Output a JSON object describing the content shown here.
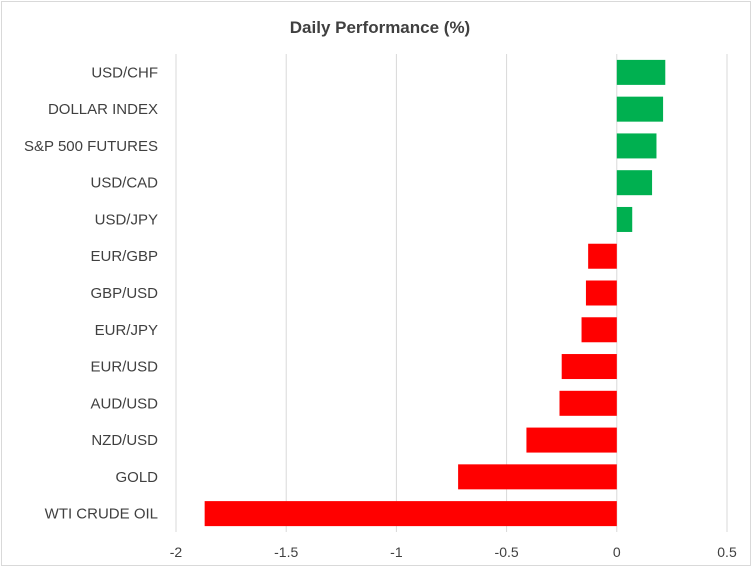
{
  "chart_data": {
    "type": "bar",
    "orientation": "horizontal",
    "title": "Daily Performance (%)",
    "xlabel": "",
    "ylabel": "",
    "xlim": [
      -2,
      0.5
    ],
    "x_ticks": [
      -2,
      -1.5,
      -1,
      -0.5,
      0,
      0.5
    ],
    "x_tick_labels": [
      "-2",
      "-1.5",
      "-1",
      "-0.5",
      "0",
      "0.5"
    ],
    "grid": true,
    "legend": "none",
    "positive_color": "#00b050",
    "negative_color": "#ff0000",
    "categories": [
      "USD/CHF",
      "DOLLAR INDEX",
      "S&P 500 FUTURES",
      "USD/CAD",
      "USD/JPY",
      "EUR/GBP",
      "GBP/USD",
      "EUR/JPY",
      "EUR/USD",
      "AUD/USD",
      "NZD/USD",
      "GOLD",
      "WTI CRUDE OIL"
    ],
    "values": [
      0.22,
      0.21,
      0.18,
      0.16,
      0.07,
      -0.13,
      -0.14,
      -0.16,
      -0.25,
      -0.26,
      -0.41,
      -0.72,
      -1.87
    ]
  }
}
